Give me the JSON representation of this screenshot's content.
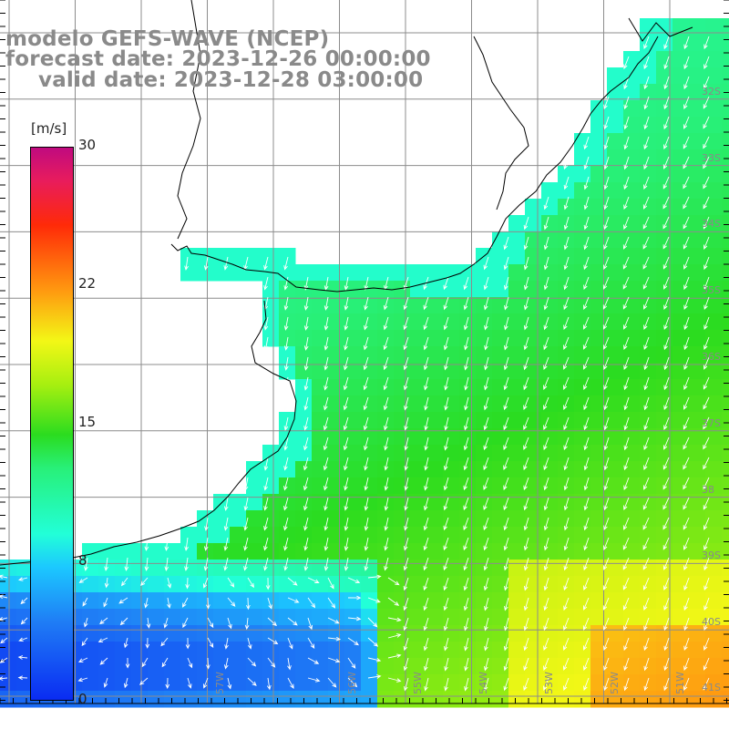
{
  "title": {
    "line1": "modelo GEFS-WAVE (NCEP)",
    "line2": "forecast date: 2023-12-26 00:00:00",
    "line3": "valid date: 2023-12-28 03:00:00"
  },
  "colorbar": {
    "unit": "[m/s]",
    "ticks": [
      "0",
      "8",
      "15",
      "22",
      "30"
    ],
    "min": 0,
    "max": 30,
    "colors": [
      "#0a2cf2",
      "#1f7cf5",
      "#1cc8ff",
      "#22ffd8",
      "#28f078",
      "#2bdc1f",
      "#a6ef10",
      "#f3f716",
      "#ff9a10",
      "#ff2a08",
      "#e81c5c",
      "#c00a80"
    ]
  },
  "map": {
    "lat_labels": [
      "32S",
      "33S",
      "34S",
      "35S",
      "36S",
      "37S",
      "38",
      "39S",
      "40S",
      "41S"
    ],
    "lon_labels": [
      "57W",
      "56W",
      "55W",
      "54W",
      "53W",
      "52W",
      "51W"
    ],
    "grid_color": "#8c8c8c",
    "arrow_color": "#ffffff",
    "coast_color": "#000000",
    "wind_direction": "from north-northeast over most of the domain, westerly-turning in the south-west corner"
  }
}
